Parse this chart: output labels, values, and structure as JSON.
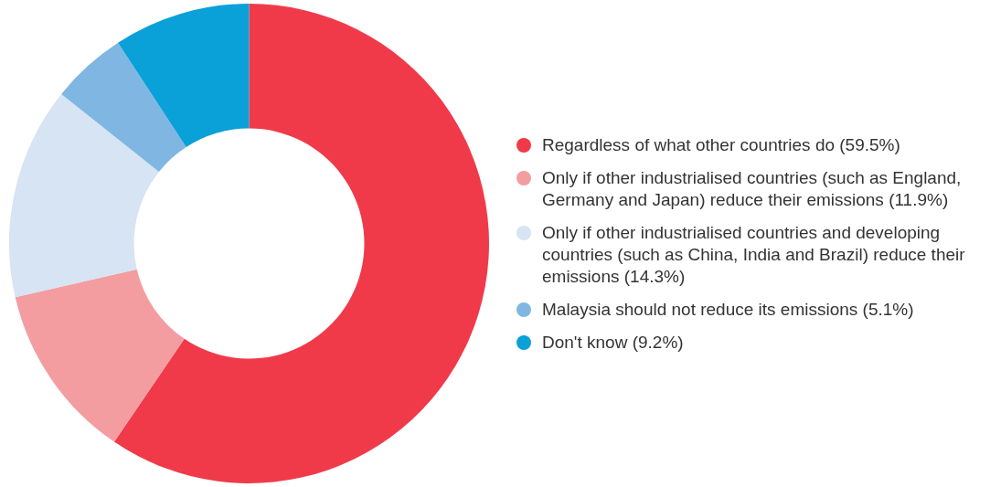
{
  "chart_data": {
    "type": "donut",
    "categories": [
      "Regardless of what other countries do (59.5%)",
      "Only if other industrialised countries (such as England, Germany and Japan) reduce their emissions (11.9%)",
      "Only if other industrialised countries and developing countries (such as China, India and Brazil) reduce their emissions (14.3%)",
      "Malaysia should not reduce its emissions (5.1%)",
      "Don't know (9.2%)"
    ],
    "values": [
      59.5,
      11.9,
      14.3,
      5.1,
      9.2
    ],
    "colors": [
      "#f03a4a",
      "#f49da0",
      "#d6e4f4",
      "#7fb7e2",
      "#0aa0d8"
    ],
    "legend": "right"
  }
}
